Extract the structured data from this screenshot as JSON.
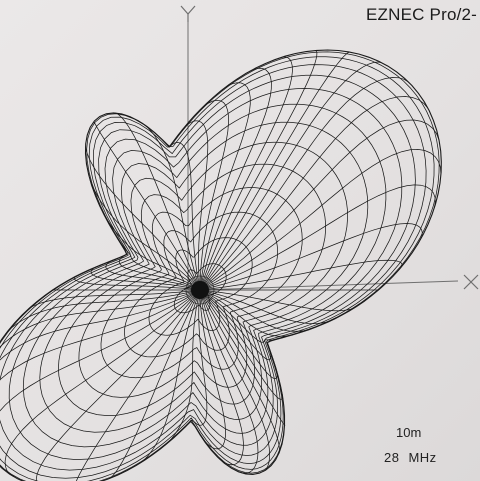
{
  "window": {
    "title": "EZNEC Pro/2-"
  },
  "axes": {
    "y_label": "Y",
    "x_label": "X"
  },
  "pattern": {
    "type": "3D wireframe radiation pattern",
    "line_color": "#1a1a1a",
    "axis_color": "#6f6f6f"
  },
  "info": {
    "band": "10m",
    "frequency": "28",
    "frequency_unit": "MHz"
  },
  "colors": {
    "background": "#e9e6e6",
    "text": "#1c1c1c"
  }
}
